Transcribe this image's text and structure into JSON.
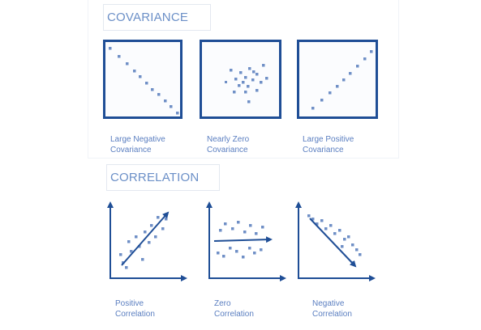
{
  "covariance": {
    "title": "COVARIANCE",
    "panels": [
      {
        "caption_line1": "Large Negative",
        "caption_line2": "Covariance"
      },
      {
        "caption_line1": "Nearly Zero",
        "caption_line2": "Covariance"
      },
      {
        "caption_line1": "Large Positive",
        "caption_line2": "Covariance"
      }
    ]
  },
  "correlation": {
    "title": "CORRELATION",
    "panels": [
      {
        "caption_line1": "Positive",
        "caption_line2": "Correlation"
      },
      {
        "caption_line1": "Zero",
        "caption_line2": "Correlation"
      },
      {
        "caption_line1": "Negative",
        "caption_line2": "Correlation"
      }
    ]
  },
  "colors": {
    "frame": "#1f4e96",
    "point": "#6f8fc6",
    "text": "#5a7ec0"
  }
}
